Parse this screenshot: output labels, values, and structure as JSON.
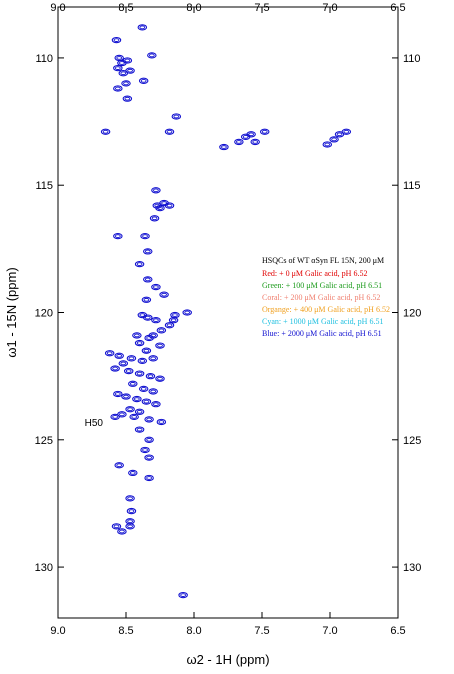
{
  "chart_data": {
    "type": "scatter",
    "xaxis": {
      "label": "ω2 - 1H  (ppm)",
      "range": [
        9.0,
        6.5
      ],
      "ticks": [
        9.0,
        8.5,
        8.0,
        7.5,
        7.0,
        6.5
      ],
      "tick_labels": [
        "9.0",
        "8.5",
        "8.0",
        "7.5",
        "7.0",
        "6.5"
      ]
    },
    "yaxis": {
      "label": "ω1 - 15N  (ppm)",
      "range": [
        108.0,
        132.0
      ],
      "ticks": [
        110,
        115,
        120,
        125,
        130
      ],
      "tick_labels": [
        "110",
        "115",
        "120",
        "125",
        "130"
      ]
    },
    "legend": {
      "placement": "right",
      "title": "HSQCs of WT αSyn FL 15N, 200 μM",
      "entries": [
        {
          "text": "Red: + 0 μM Galic acid, pH 6.52",
          "color": "#e00000"
        },
        {
          "text": "Green: + 100 μM Galic acid, pH 6.51",
          "color": "#1a9a1a"
        },
        {
          "text": "Coral: + 200 μM Galic acid, pH 6.52",
          "color": "#f08070"
        },
        {
          "text": "Organge: + 400 μM Galic acid, pH 6.52",
          "color": "#f0a020"
        },
        {
          "text": "Cyan: + 1000 μM Galic acid, pH 6.51",
          "color": "#20c0e0"
        },
        {
          "text": "Blue: + 2000 μM Galic acid, pH 6.51",
          "color": "#1010d0"
        }
      ]
    },
    "annotations": [
      {
        "text": "H50",
        "x": 8.64,
        "y": 124.3
      }
    ],
    "series": [
      {
        "color": "#1010d0",
        "points": [
          [
            8.38,
            108.8
          ],
          [
            8.57,
            109.3
          ],
          [
            8.31,
            109.9
          ],
          [
            8.55,
            110.0
          ],
          [
            8.53,
            110.2
          ],
          [
            8.49,
            110.1
          ],
          [
            8.56,
            110.4
          ],
          [
            8.47,
            110.5
          ],
          [
            8.52,
            110.6
          ],
          [
            8.37,
            110.9
          ],
          [
            8.5,
            111.0
          ],
          [
            8.56,
            111.2
          ],
          [
            8.49,
            111.6
          ],
          [
            8.13,
            112.3
          ],
          [
            8.18,
            112.9
          ],
          [
            8.65,
            112.9
          ],
          [
            7.78,
            113.5
          ],
          [
            7.67,
            113.3
          ],
          [
            7.62,
            113.1
          ],
          [
            7.58,
            113.0
          ],
          [
            7.55,
            113.3
          ],
          [
            7.48,
            112.9
          ],
          [
            7.02,
            113.4
          ],
          [
            6.97,
            113.2
          ],
          [
            6.93,
            113.0
          ],
          [
            6.88,
            112.9
          ],
          [
            8.28,
            115.2
          ],
          [
            8.27,
            115.8
          ],
          [
            8.25,
            115.9
          ],
          [
            8.22,
            115.7
          ],
          [
            8.18,
            115.8
          ],
          [
            8.29,
            116.3
          ],
          [
            8.56,
            117.0
          ],
          [
            8.36,
            117.0
          ],
          [
            8.34,
            117.6
          ],
          [
            8.4,
            118.1
          ],
          [
            8.34,
            118.7
          ],
          [
            8.28,
            119.0
          ],
          [
            8.22,
            119.3
          ],
          [
            8.35,
            119.5
          ],
          [
            8.38,
            120.1
          ],
          [
            8.34,
            120.2
          ],
          [
            8.28,
            120.3
          ],
          [
            8.18,
            120.5
          ],
          [
            8.15,
            120.3
          ],
          [
            8.05,
            120.0
          ],
          [
            8.14,
            120.1
          ],
          [
            8.24,
            120.7
          ],
          [
            8.3,
            120.9
          ],
          [
            8.42,
            120.9
          ],
          [
            8.33,
            121.0
          ],
          [
            8.4,
            121.2
          ],
          [
            8.25,
            121.3
          ],
          [
            8.35,
            121.5
          ],
          [
            8.62,
            121.6
          ],
          [
            8.55,
            121.7
          ],
          [
            8.46,
            121.8
          ],
          [
            8.38,
            121.9
          ],
          [
            8.3,
            121.8
          ],
          [
            8.52,
            122.0
          ],
          [
            8.58,
            122.2
          ],
          [
            8.48,
            122.3
          ],
          [
            8.4,
            122.4
          ],
          [
            8.32,
            122.5
          ],
          [
            8.25,
            122.6
          ],
          [
            8.45,
            122.8
          ],
          [
            8.37,
            123.0
          ],
          [
            8.3,
            123.1
          ],
          [
            8.56,
            123.2
          ],
          [
            8.5,
            123.3
          ],
          [
            8.42,
            123.4
          ],
          [
            8.35,
            123.5
          ],
          [
            8.28,
            123.6
          ],
          [
            8.47,
            123.8
          ],
          [
            8.4,
            123.9
          ],
          [
            8.53,
            124.0
          ],
          [
            8.58,
            124.1
          ],
          [
            8.44,
            124.1
          ],
          [
            8.33,
            124.2
          ],
          [
            8.24,
            124.3
          ],
          [
            8.4,
            124.6
          ],
          [
            8.33,
            125.0
          ],
          [
            8.36,
            125.4
          ],
          [
            8.33,
            125.7
          ],
          [
            8.55,
            126.0
          ],
          [
            8.45,
            126.3
          ],
          [
            8.33,
            126.5
          ],
          [
            8.47,
            127.3
          ],
          [
            8.46,
            127.8
          ],
          [
            8.47,
            128.2
          ],
          [
            8.57,
            128.4
          ],
          [
            8.53,
            128.6
          ],
          [
            8.47,
            128.4
          ],
          [
            8.08,
            131.1
          ]
        ]
      }
    ]
  }
}
